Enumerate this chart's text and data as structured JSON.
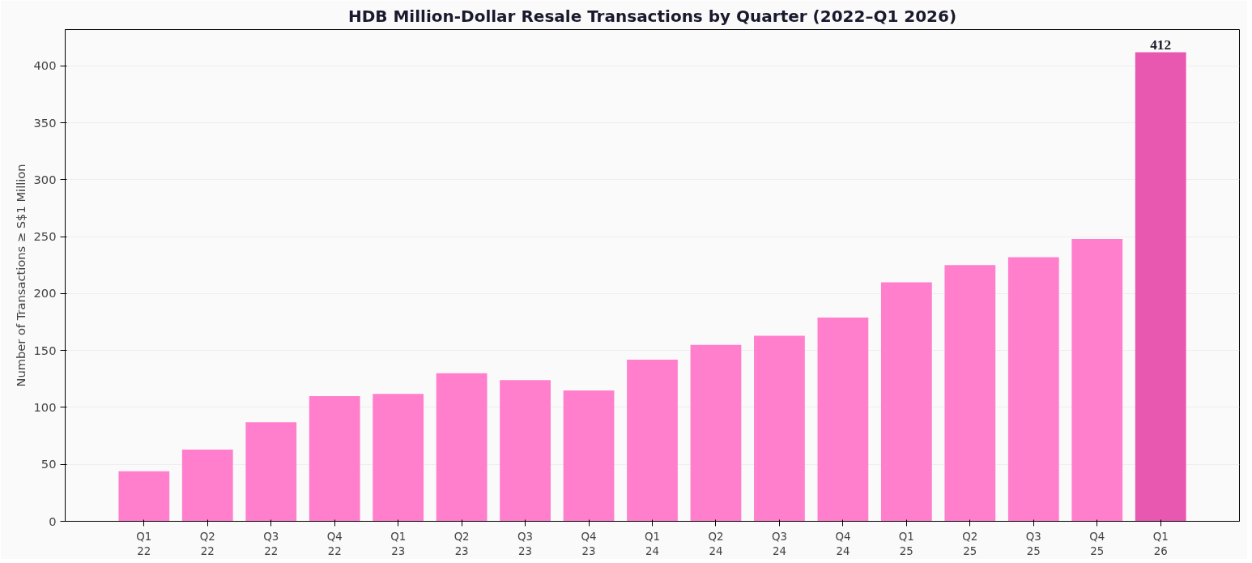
{
  "chart_data": {
    "type": "bar",
    "title": "HDB Million-Dollar Resale Transactions by Quarter (2022–Q1 2026)",
    "ylabel": "Number of Transactions ≥ S$1 Million",
    "categories": [
      "Q1\n22",
      "Q2\n22",
      "Q3\n22",
      "Q4\n22",
      "Q1\n23",
      "Q2\n23",
      "Q3\n23",
      "Q4\n23",
      "Q1\n24",
      "Q2\n24",
      "Q3\n24",
      "Q4\n24",
      "Q1\n25",
      "Q2\n25",
      "Q3\n25",
      "Q4\n25",
      "Q1\n26"
    ],
    "values": [
      44,
      63,
      87,
      110,
      112,
      130,
      124,
      115,
      142,
      155,
      163,
      179,
      210,
      225,
      232,
      248,
      412
    ],
    "colors": [
      "#ff7fcc",
      "#ff7fcc",
      "#ff7fcc",
      "#ff7fcc",
      "#ff7fcc",
      "#ff7fcc",
      "#ff7fcc",
      "#ff7fcc",
      "#ff7fcc",
      "#ff7fcc",
      "#ff7fcc",
      "#ff7fcc",
      "#ff7fcc",
      "#ff7fcc",
      "#ff7fcc",
      "#ff7fcc",
      "#e858b0"
    ],
    "value_labels": [
      null,
      null,
      null,
      null,
      null,
      null,
      null,
      null,
      null,
      null,
      null,
      null,
      null,
      null,
      null,
      null,
      "412"
    ],
    "ylim": [
      0,
      432
    ],
    "yticks": [
      0,
      50,
      100,
      150,
      200,
      250,
      300,
      350,
      400
    ],
    "grid": "y"
  }
}
